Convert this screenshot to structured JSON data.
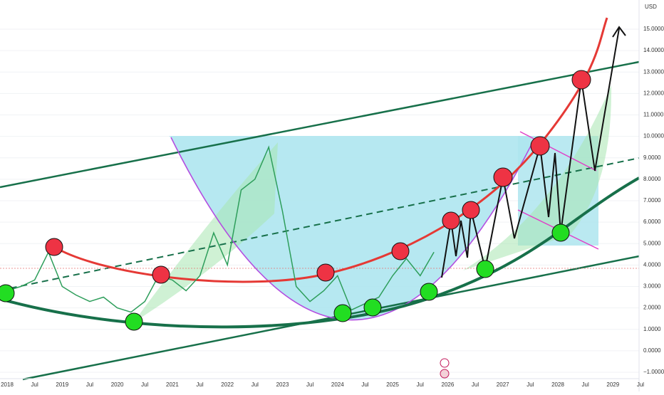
{
  "chart_data": {
    "type": "line",
    "currency": "USD",
    "x_labels": [
      "2018",
      "Jul",
      "2019",
      "Jul",
      "2020",
      "Jul",
      "2021",
      "Jul",
      "2022",
      "Jul",
      "2023",
      "Jul",
      "2024",
      "Jul",
      "2025",
      "Jul",
      "2026",
      "Jul",
      "2027",
      "Jul",
      "2028",
      "Jul",
      "2029",
      "Jul"
    ],
    "x": [
      "2018-01",
      "2018-04",
      "2018-07",
      "2018-10",
      "2019-01",
      "2019-04",
      "2019-07",
      "2019-10",
      "2020-01",
      "2020-04",
      "2020-07",
      "2020-10",
      "2021-01",
      "2021-04",
      "2021-07",
      "2021-10",
      "2022-01",
      "2022-04",
      "2022-07",
      "2022-10",
      "2023-01",
      "2023-04",
      "2023-07",
      "2023-10",
      "2024-01",
      "2024-04",
      "2024-07",
      "2024-10",
      "2025-01",
      "2025-04",
      "2025-07",
      "2025-10"
    ],
    "series": [
      {
        "color": "#2e9e5b",
        "values": [
          2.8,
          3.0,
          3.3,
          4.6,
          3.0,
          2.6,
          2.3,
          2.5,
          2.0,
          1.8,
          2.3,
          3.5,
          3.3,
          2.8,
          3.5,
          5.5,
          4.0,
          7.5,
          8.0,
          9.5,
          6.5,
          3.0,
          2.3,
          2.8,
          3.5,
          1.9,
          2.2,
          2.5,
          3.5,
          4.3,
          3.5,
          4.6
        ]
      }
    ],
    "ylim": [
      -1.3,
      16.36
    ],
    "yticks": [
      {
        "value": 15,
        "label": "15.0000"
      },
      {
        "value": 14,
        "label": "14.0000"
      },
      {
        "value": 13,
        "label": "13.0000"
      },
      {
        "value": 12,
        "label": "12.0000"
      },
      {
        "value": 11,
        "label": "11.0000"
      },
      {
        "value": 10,
        "label": "10.0000"
      },
      {
        "value": 9,
        "label": "9.0000"
      },
      {
        "value": 8,
        "label": "8.0000"
      },
      {
        "value": 7,
        "label": "7.0000"
      },
      {
        "value": 6,
        "label": "6.0000"
      },
      {
        "value": 5,
        "label": "5.0000"
      },
      {
        "value": 4,
        "label": "4.0000"
      },
      {
        "value": 3,
        "label": "3.0000"
      },
      {
        "value": 2,
        "label": "2.0000"
      },
      {
        "value": 1,
        "label": "1.0000"
      },
      {
        "value": 0,
        "label": "0.0000"
      },
      {
        "value": -1,
        "label": "−1.0000"
      }
    ],
    "grid": true
  }
}
